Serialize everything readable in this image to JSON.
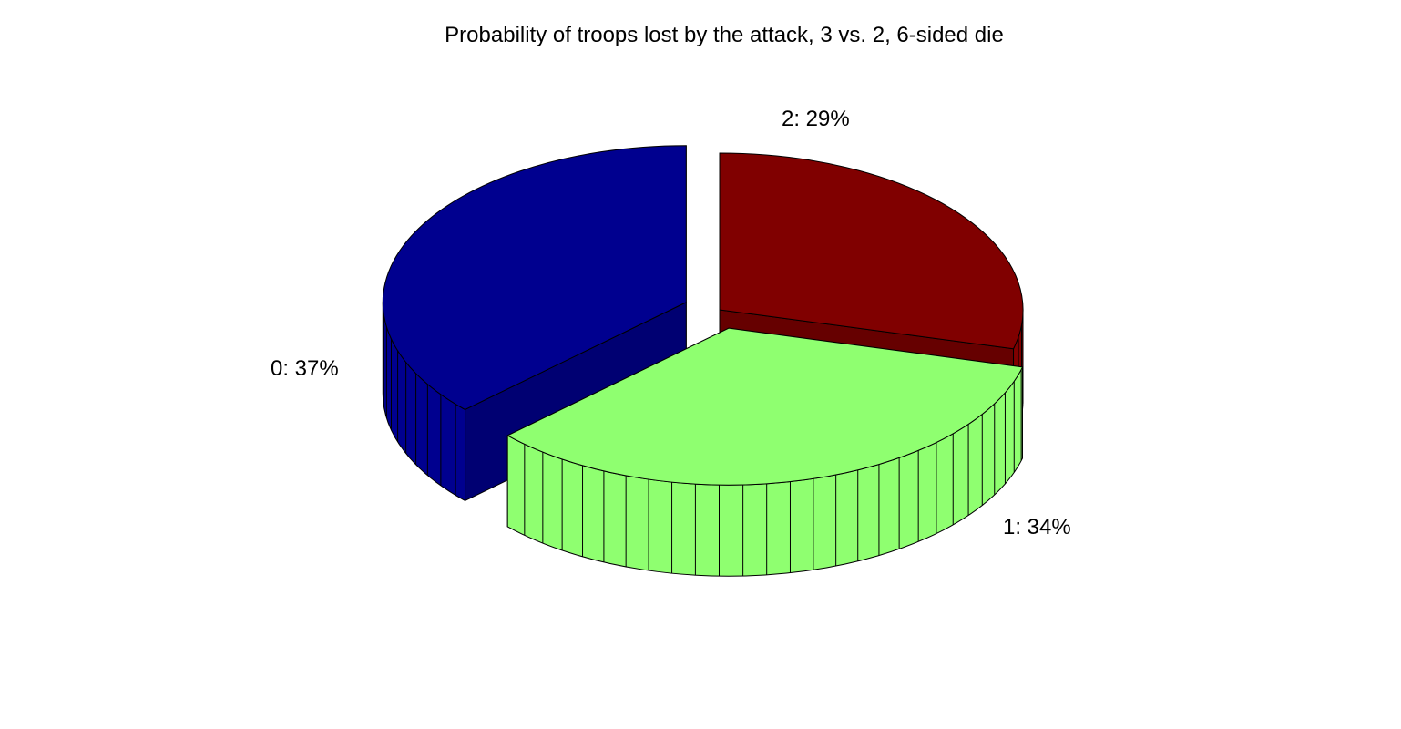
{
  "chart_data": {
    "type": "pie",
    "title": "Probability of troops lost by the attack, 3 vs. 2, 6-sided die",
    "three_d": true,
    "slices": [
      {
        "label": "0: 37%",
        "category": "0",
        "value": 37,
        "color": "#00008f",
        "exploded": true
      },
      {
        "label": "1: 34%",
        "category": "1",
        "value": 34,
        "color": "#8fff70",
        "exploded": true
      },
      {
        "label": "2: 29%",
        "category": "2",
        "value": 29,
        "color": "#800000",
        "exploded": false
      }
    ]
  }
}
